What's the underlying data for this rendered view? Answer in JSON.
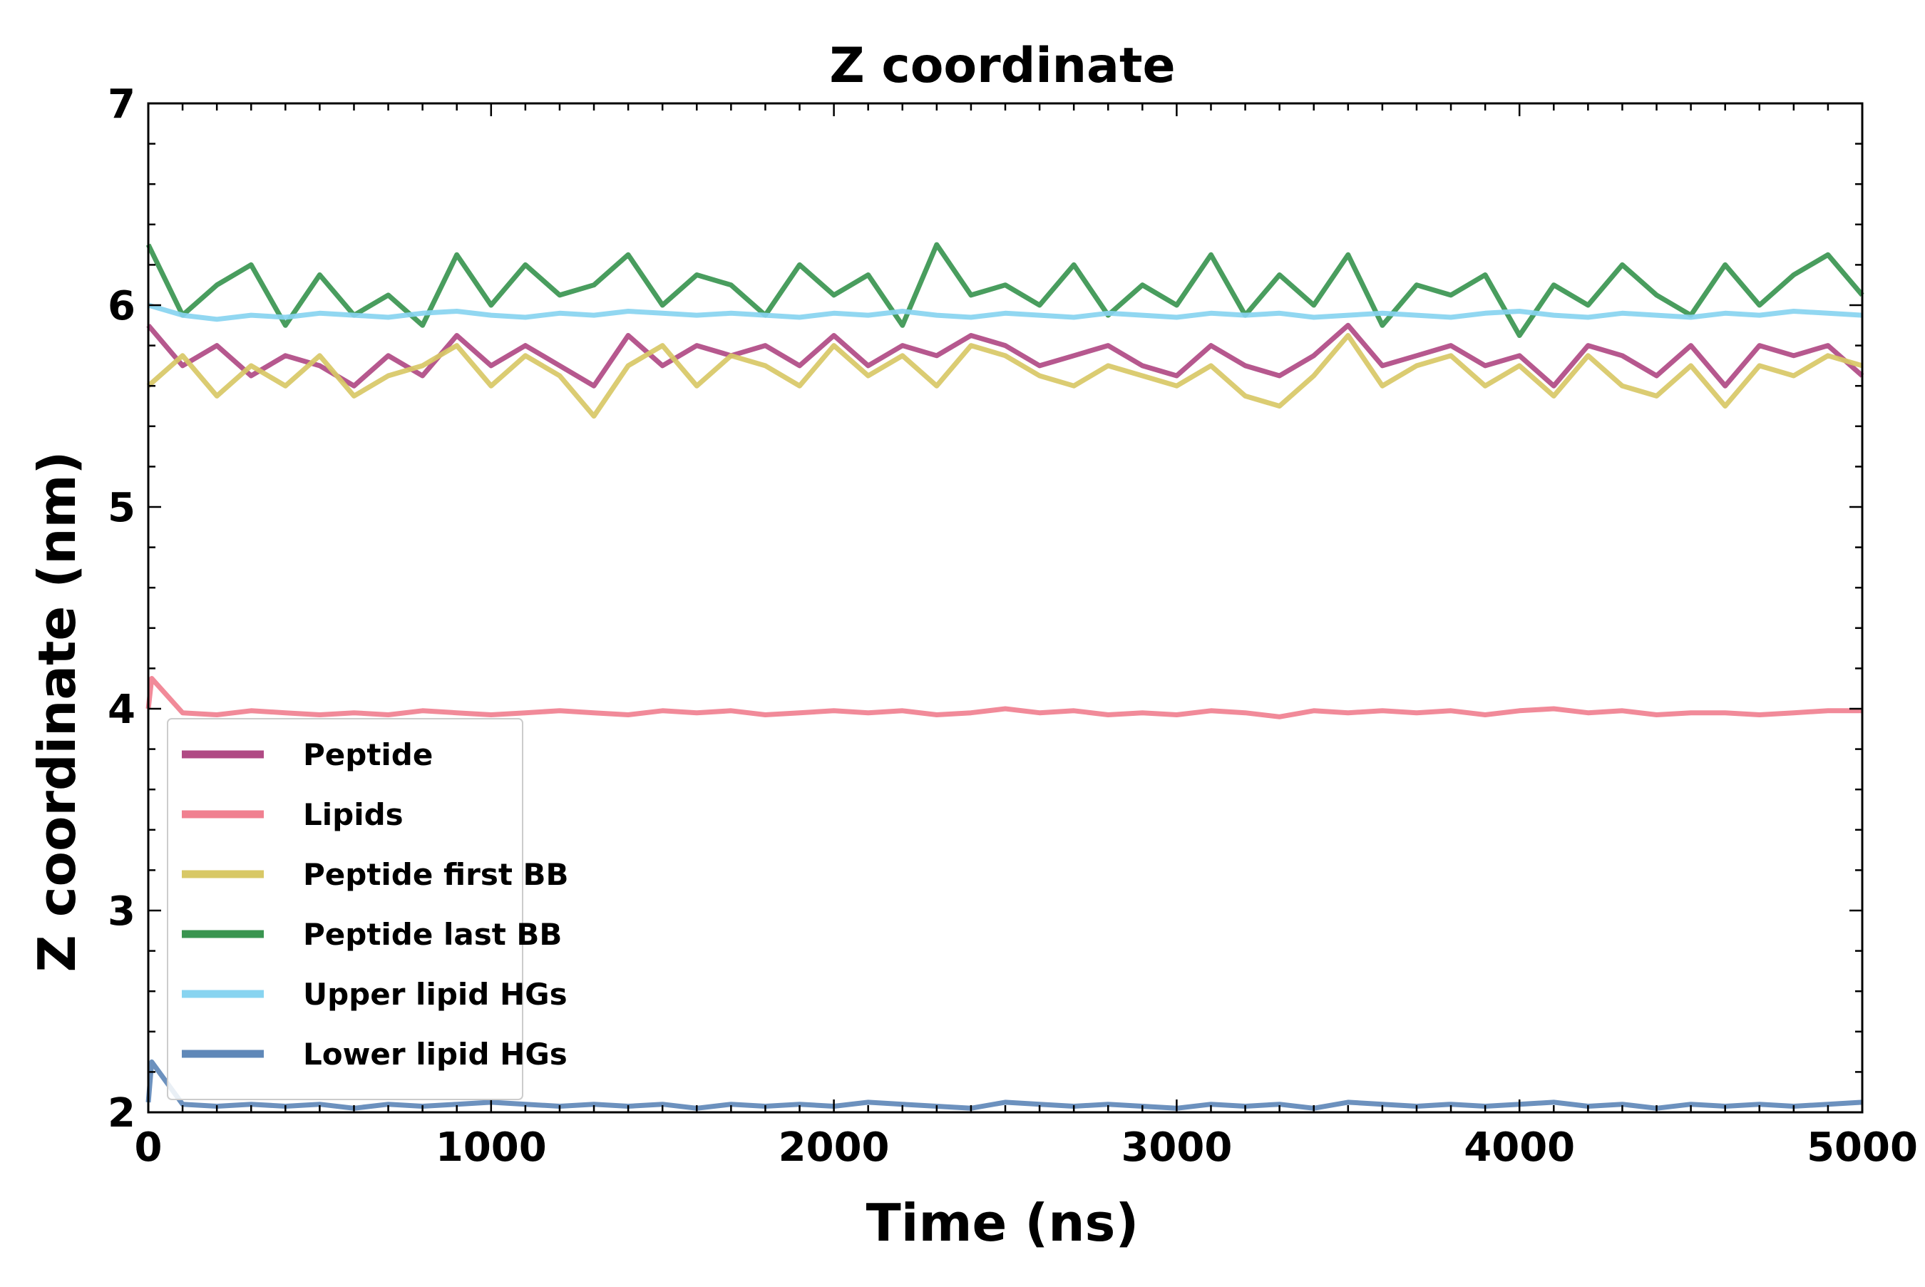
{
  "chart_data": {
    "type": "line",
    "title": "Z coordinate",
    "xlabel": "Time (ns)",
    "ylabel": "Z coordinate (nm)",
    "xlim": [
      0,
      5000
    ],
    "ylim": [
      2,
      7
    ],
    "xticks": [
      0,
      1000,
      2000,
      3000,
      4000,
      5000
    ],
    "yticks": [
      2,
      3,
      4,
      5,
      6,
      7
    ],
    "grid": false,
    "legend_position": "lower-left",
    "series": [
      {
        "name": "Peptide",
        "color": "#b04a84",
        "x": [
          0,
          100,
          200,
          300,
          400,
          500,
          600,
          700,
          800,
          900,
          1000,
          1100,
          1200,
          1300,
          1400,
          1500,
          1600,
          1700,
          1800,
          1900,
          2000,
          2100,
          2200,
          2300,
          2400,
          2500,
          2600,
          2700,
          2800,
          2900,
          3000,
          3100,
          3200,
          3300,
          3400,
          3500,
          3600,
          3700,
          3800,
          3900,
          4000,
          4100,
          4200,
          4300,
          4400,
          4500,
          4600,
          4700,
          4800,
          4900,
          5000
        ],
        "y": [
          5.9,
          5.7,
          5.8,
          5.65,
          5.75,
          5.7,
          5.6,
          5.75,
          5.65,
          5.85,
          5.7,
          5.8,
          5.7,
          5.6,
          5.85,
          5.7,
          5.8,
          5.75,
          5.8,
          5.7,
          5.85,
          5.7,
          5.8,
          5.75,
          5.85,
          5.8,
          5.7,
          5.75,
          5.8,
          5.7,
          5.65,
          5.8,
          5.7,
          5.65,
          5.75,
          5.9,
          5.7,
          5.75,
          5.8,
          5.7,
          5.75,
          5.6,
          5.8,
          5.75,
          5.65,
          5.8,
          5.6,
          5.8,
          5.75,
          5.8,
          5.65
        ]
      },
      {
        "name": "Lipids",
        "color": "#f08090",
        "x": [
          0,
          10,
          100,
          200,
          300,
          400,
          500,
          600,
          700,
          800,
          900,
          1000,
          1100,
          1200,
          1300,
          1400,
          1500,
          1600,
          1700,
          1800,
          1900,
          2000,
          2100,
          2200,
          2300,
          2400,
          2500,
          2600,
          2700,
          2800,
          2900,
          3000,
          3100,
          3200,
          3300,
          3400,
          3500,
          3600,
          3700,
          3800,
          3900,
          4000,
          4100,
          4200,
          4300,
          4400,
          4500,
          4600,
          4700,
          4800,
          4900,
          5000
        ],
        "y": [
          4.0,
          4.15,
          3.98,
          3.97,
          3.99,
          3.98,
          3.97,
          3.98,
          3.97,
          3.99,
          3.98,
          3.97,
          3.98,
          3.99,
          3.98,
          3.97,
          3.99,
          3.98,
          3.99,
          3.97,
          3.98,
          3.99,
          3.98,
          3.99,
          3.97,
          3.98,
          4.0,
          3.98,
          3.99,
          3.97,
          3.98,
          3.97,
          3.99,
          3.98,
          3.96,
          3.99,
          3.98,
          3.99,
          3.98,
          3.99,
          3.97,
          3.99,
          4.0,
          3.98,
          3.99,
          3.97,
          3.98,
          3.98,
          3.97,
          3.98,
          3.99,
          3.99
        ]
      },
      {
        "name": "Peptide first BB",
        "color": "#d8c866",
        "x": [
          0,
          100,
          200,
          300,
          400,
          500,
          600,
          700,
          800,
          900,
          1000,
          1100,
          1200,
          1300,
          1400,
          1500,
          1600,
          1700,
          1800,
          1900,
          2000,
          2100,
          2200,
          2300,
          2400,
          2500,
          2600,
          2700,
          2800,
          2900,
          3000,
          3100,
          3200,
          3300,
          3400,
          3500,
          3600,
          3700,
          3800,
          3900,
          4000,
          4100,
          4200,
          4300,
          4400,
          4500,
          4600,
          4700,
          4800,
          4900,
          5000
        ],
        "y": [
          5.6,
          5.75,
          5.55,
          5.7,
          5.6,
          5.75,
          5.55,
          5.65,
          5.7,
          5.8,
          5.6,
          5.75,
          5.65,
          5.45,
          5.7,
          5.8,
          5.6,
          5.75,
          5.7,
          5.6,
          5.8,
          5.65,
          5.75,
          5.6,
          5.8,
          5.75,
          5.65,
          5.6,
          5.7,
          5.65,
          5.6,
          5.7,
          5.55,
          5.5,
          5.65,
          5.85,
          5.6,
          5.7,
          5.75,
          5.6,
          5.7,
          5.55,
          5.75,
          5.6,
          5.55,
          5.7,
          5.5,
          5.7,
          5.65,
          5.75,
          5.7
        ]
      },
      {
        "name": "Peptide last BB",
        "color": "#3a9550",
        "x": [
          0,
          100,
          200,
          300,
          400,
          500,
          600,
          700,
          800,
          900,
          1000,
          1100,
          1200,
          1300,
          1400,
          1500,
          1600,
          1700,
          1800,
          1900,
          2000,
          2100,
          2200,
          2300,
          2400,
          2500,
          2600,
          2700,
          2800,
          2900,
          3000,
          3100,
          3200,
          3300,
          3400,
          3500,
          3600,
          3700,
          3800,
          3900,
          4000,
          4100,
          4200,
          4300,
          4400,
          4500,
          4600,
          4700,
          4800,
          4900,
          5000
        ],
        "y": [
          6.3,
          5.95,
          6.1,
          6.2,
          5.9,
          6.15,
          5.95,
          6.05,
          5.9,
          6.25,
          6.0,
          6.2,
          6.05,
          6.1,
          6.25,
          6.0,
          6.15,
          6.1,
          5.95,
          6.2,
          6.05,
          6.15,
          5.9,
          6.3,
          6.05,
          6.1,
          6.0,
          6.2,
          5.95,
          6.1,
          6.0,
          6.25,
          5.95,
          6.15,
          6.0,
          6.25,
          5.9,
          6.1,
          6.05,
          6.15,
          5.85,
          6.1,
          6.0,
          6.2,
          6.05,
          5.95,
          6.2,
          6.0,
          6.15,
          6.25,
          6.05
        ]
      },
      {
        "name": "Upper lipid HGs",
        "color": "#88d4f0",
        "x": [
          0,
          100,
          200,
          300,
          400,
          500,
          600,
          700,
          800,
          900,
          1000,
          1100,
          1200,
          1300,
          1400,
          1500,
          1600,
          1700,
          1800,
          1900,
          2000,
          2100,
          2200,
          2300,
          2400,
          2500,
          2600,
          2700,
          2800,
          2900,
          3000,
          3100,
          3200,
          3300,
          3400,
          3500,
          3600,
          3700,
          3800,
          3900,
          4000,
          4100,
          4200,
          4300,
          4400,
          4500,
          4600,
          4700,
          4800,
          4900,
          5000
        ],
        "y": [
          6.0,
          5.95,
          5.93,
          5.95,
          5.94,
          5.96,
          5.95,
          5.94,
          5.96,
          5.97,
          5.95,
          5.94,
          5.96,
          5.95,
          5.97,
          5.96,
          5.95,
          5.96,
          5.95,
          5.94,
          5.96,
          5.95,
          5.97,
          5.95,
          5.94,
          5.96,
          5.95,
          5.94,
          5.96,
          5.95,
          5.94,
          5.96,
          5.95,
          5.96,
          5.94,
          5.95,
          5.96,
          5.95,
          5.94,
          5.96,
          5.97,
          5.95,
          5.94,
          5.96,
          5.95,
          5.94,
          5.96,
          5.95,
          5.97,
          5.96,
          5.95
        ]
      },
      {
        "name": "Lower lipid HGs",
        "color": "#5f88b8",
        "x": [
          0,
          10,
          100,
          200,
          300,
          400,
          500,
          600,
          700,
          800,
          900,
          1000,
          1100,
          1200,
          1300,
          1400,
          1500,
          1600,
          1700,
          1800,
          1900,
          2000,
          2100,
          2200,
          2300,
          2400,
          2500,
          2600,
          2700,
          2800,
          2900,
          3000,
          3100,
          3200,
          3300,
          3400,
          3500,
          3600,
          3700,
          3800,
          3900,
          4000,
          4100,
          4200,
          4300,
          4400,
          4500,
          4600,
          4700,
          4800,
          4900,
          5000
        ],
        "y": [
          2.05,
          2.25,
          2.04,
          2.03,
          2.04,
          2.03,
          2.04,
          2.02,
          2.04,
          2.03,
          2.04,
          2.05,
          2.04,
          2.03,
          2.04,
          2.03,
          2.04,
          2.02,
          2.04,
          2.03,
          2.04,
          2.03,
          2.05,
          2.04,
          2.03,
          2.02,
          2.05,
          2.04,
          2.03,
          2.04,
          2.03,
          2.02,
          2.04,
          2.03,
          2.04,
          2.02,
          2.05,
          2.04,
          2.03,
          2.04,
          2.03,
          2.04,
          2.05,
          2.03,
          2.04,
          2.02,
          2.04,
          2.03,
          2.04,
          2.03,
          2.04,
          2.05
        ]
      }
    ]
  }
}
